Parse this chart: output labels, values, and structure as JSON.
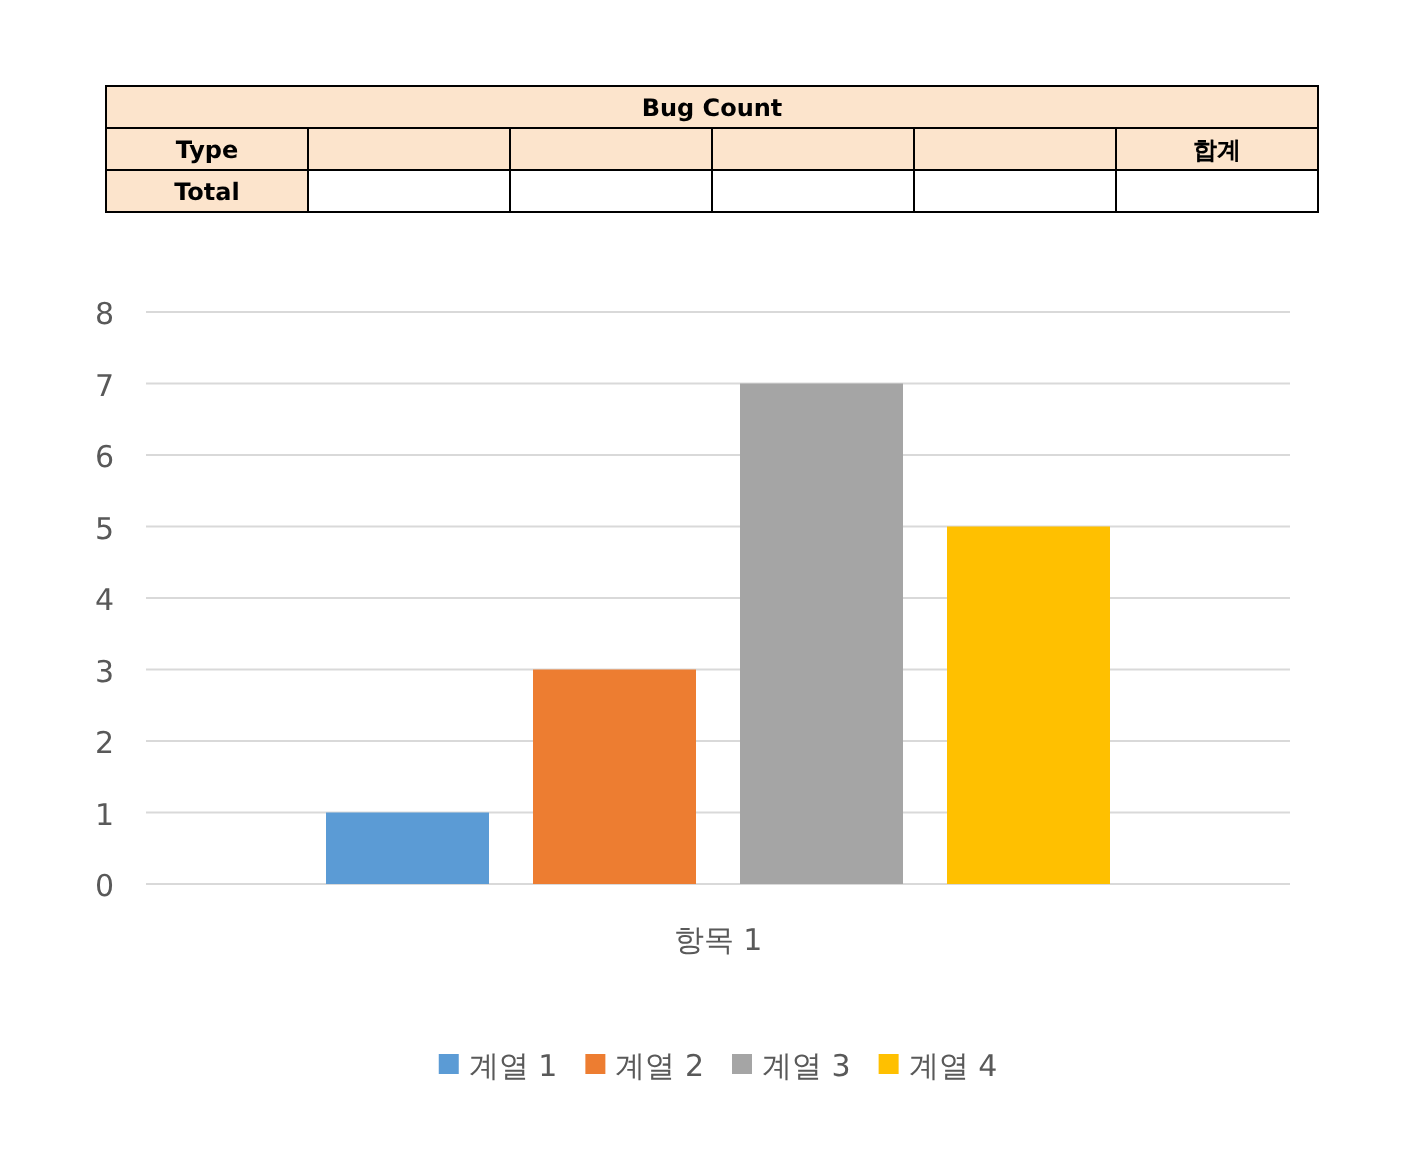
{
  "chart_data": {
    "type": "bar",
    "categories": [
      "항목 1"
    ],
    "series": [
      {
        "name": "계열 1",
        "color": "#5b9bd5",
        "values": [
          1
        ]
      },
      {
        "name": "계열 2",
        "color": "#ed7d31",
        "values": [
          3
        ]
      },
      {
        "name": "계열 3",
        "color": "#a5a5a5",
        "values": [
          7
        ]
      },
      {
        "name": "계열 4",
        "color": "#ffc000",
        "values": [
          5
        ]
      }
    ],
    "ylim": [
      0,
      8
    ],
    "yticks": [
      0,
      1,
      2,
      3,
      4,
      5,
      6,
      7,
      8
    ],
    "grid": "y",
    "legend": "bottom",
    "annotations": [
      "Bug Count",
      "Type",
      "합계",
      "Total"
    ]
  }
}
